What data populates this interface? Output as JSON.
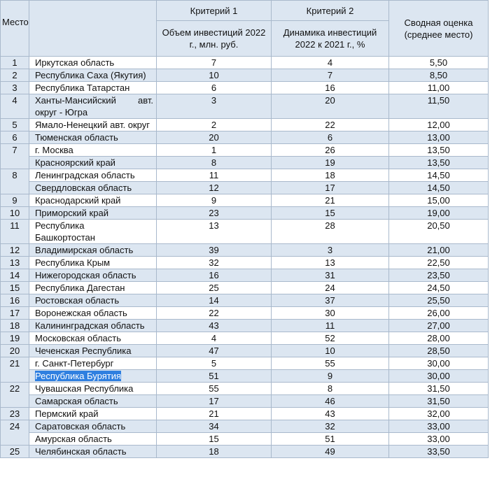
{
  "header": {
    "place": "Место",
    "criterion1": "Критерий 1",
    "criterion2": "Критерий 2",
    "criterion1_desc": "Объем инвестиций 2022 г., млн. руб.",
    "criterion2_desc": "Динамика инвестиций 2022 к 2021 г., %",
    "summary": "Сводная оценка (среднее место)"
  },
  "table": {
    "groups": [
      {
        "place": "1",
        "rows": [
          [
            "Иркутская область",
            7,
            4,
            "5,50"
          ]
        ]
      },
      {
        "place": "2",
        "rows": [
          [
            "Республика Саха (Якутия)",
            10,
            7,
            "8,50"
          ]
        ]
      },
      {
        "place": "3",
        "rows": [
          [
            "Республика Татарстан",
            6,
            16,
            "11,00"
          ]
        ]
      },
      {
        "place": "4",
        "rows": [
          [
            "Ханты-Мансийский авт. округ - Югра",
            3,
            20,
            "11,50"
          ]
        ]
      },
      {
        "place": "5",
        "rows": [
          [
            "Ямало-Ненецкий авт. округ",
            2,
            22,
            "12,00"
          ]
        ]
      },
      {
        "place": "6",
        "rows": [
          [
            "Тюменская область",
            20,
            6,
            "13,00"
          ]
        ]
      },
      {
        "place": "7",
        "rows": [
          [
            "г. Москва",
            1,
            26,
            "13,50"
          ],
          [
            "Красноярский край",
            8,
            19,
            "13,50"
          ]
        ]
      },
      {
        "place": "8",
        "rows": [
          [
            "Ленинградская область",
            11,
            18,
            "14,50"
          ],
          [
            "Свердловская область",
            12,
            17,
            "14,50"
          ]
        ]
      },
      {
        "place": "9",
        "rows": [
          [
            "Краснодарский край",
            9,
            21,
            "15,00"
          ]
        ]
      },
      {
        "place": "10",
        "rows": [
          [
            "Приморский край",
            23,
            15,
            "19,00"
          ]
        ]
      },
      {
        "place": "11",
        "rows": [
          [
            "Республика Башкортостан",
            13,
            28,
            "20,50"
          ]
        ]
      },
      {
        "place": "12",
        "rows": [
          [
            "Владимирская область",
            39,
            3,
            "21,00"
          ]
        ]
      },
      {
        "place": "13",
        "rows": [
          [
            "Республика Крым",
            32,
            13,
            "22,50"
          ]
        ]
      },
      {
        "place": "14",
        "rows": [
          [
            "Нижегородская область",
            16,
            31,
            "23,50"
          ]
        ]
      },
      {
        "place": "15",
        "rows": [
          [
            "Республика Дагестан",
            25,
            24,
            "24,50"
          ]
        ]
      },
      {
        "place": "16",
        "rows": [
          [
            "Ростовская область",
            14,
            37,
            "25,50"
          ]
        ]
      },
      {
        "place": "17",
        "rows": [
          [
            "Воронежская область",
            22,
            30,
            "26,00"
          ]
        ]
      },
      {
        "place": "18",
        "rows": [
          [
            "Калининградская область",
            43,
            11,
            "27,00"
          ]
        ]
      },
      {
        "place": "19",
        "rows": [
          [
            "Московская область",
            4,
            52,
            "28,00"
          ]
        ]
      },
      {
        "place": "20",
        "rows": [
          [
            "Чеченская Республика",
            47,
            10,
            "28,50"
          ]
        ]
      },
      {
        "place": "21",
        "rows": [
          [
            "г. Санкт-Петербург",
            5,
            55,
            "30,00"
          ],
          [
            "Республика Бурятия",
            51,
            9,
            "30,00"
          ]
        ]
      },
      {
        "place": "22",
        "rows": [
          [
            "Чувашская Республика",
            55,
            8,
            "31,50"
          ],
          [
            "Самарская область",
            17,
            46,
            "31,50"
          ]
        ]
      },
      {
        "place": "23",
        "rows": [
          [
            "Пермский край",
            21,
            43,
            "32,00"
          ]
        ]
      },
      {
        "place": "24",
        "rows": [
          [
            "Саратовская область",
            34,
            32,
            "33,00"
          ],
          [
            "Амурская область",
            15,
            51,
            "33,00"
          ]
        ]
      },
      {
        "place": "25",
        "rows": [
          [
            "Челябинская область",
            18,
            49,
            "33,50"
          ]
        ]
      }
    ]
  }
}
